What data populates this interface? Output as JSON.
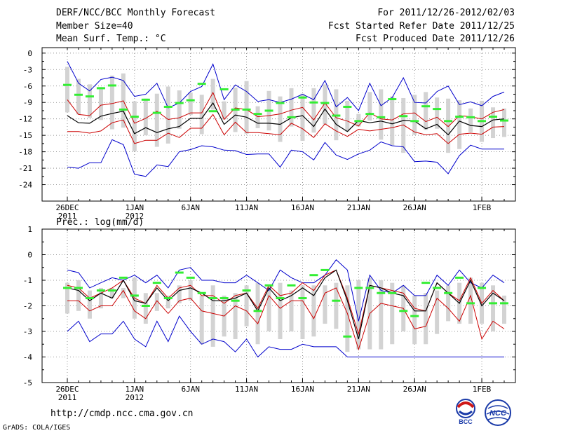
{
  "header": {
    "left": [
      "DERF/NCC/BCC Monthly Forecast",
      "Member Size=40",
      "Mean Surf. Temp.: °C"
    ],
    "right": [
      "For 2011/12/26-2012/02/03",
      "Fcst Started Refer Date 2011/12/25",
      "Fcst Produced Date 2011/12/26"
    ]
  },
  "footer": {
    "url": "http://cmdp.ncc.cma.gov.cn",
    "credit": "GrADS: COLA/IGES",
    "logo_left_text": "BCC",
    "logo_right_text": "NCC"
  },
  "colors": {
    "max_min": "#0000cc",
    "spread": "#cc0000",
    "mean": "#000000",
    "obs_bar": "#d3d3d3",
    "median": "#33ee33"
  },
  "chart_data": [
    {
      "type": "line",
      "title": "Mean Surf. Temp.: °C",
      "x_ticks": [
        {
          "index": 0,
          "label": "26DEC",
          "sub": "2011"
        },
        {
          "index": 6,
          "label": "1JAN",
          "sub": "2012"
        },
        {
          "index": 11,
          "label": "6JAN",
          "sub": ""
        },
        {
          "index": 16,
          "label": "11JAN",
          "sub": ""
        },
        {
          "index": 21,
          "label": "16JAN",
          "sub": ""
        },
        {
          "index": 26,
          "label": "21JAN",
          "sub": ""
        },
        {
          "index": 31,
          "label": "26JAN",
          "sub": ""
        },
        {
          "index": 37,
          "label": "1FEB",
          "sub": ""
        }
      ],
      "n_days": 40,
      "ylim": [
        -27,
        1
      ],
      "y_ticks": [
        0,
        -3,
        -6,
        -9,
        -12,
        -15,
        -18,
        -21,
        -24
      ],
      "series": [
        {
          "name": "max",
          "values": [
            -1.5,
            -5.5,
            -6.9,
            -4.8,
            -4.4,
            -5,
            -7.9,
            -7.5,
            -5.5,
            -10,
            -9.1,
            -7,
            -6.1,
            -2,
            -8.5,
            -5.8,
            -7,
            -8.8,
            -8.5,
            -9,
            -8.4,
            -7.5,
            -8.5,
            -5,
            -9.8,
            -8.1,
            -10.5,
            -5.5,
            -9.6,
            -8.1,
            -4.5,
            -9,
            -9.1,
            -7,
            -6,
            -9.4,
            -8.9,
            -9.6,
            -7.9,
            -7.1
          ]
        },
        {
          "name": "upper",
          "values": [
            -8.5,
            -11.2,
            -11.4,
            -9.5,
            -9.2,
            -8.7,
            -12.8,
            -11.9,
            -10.6,
            -12.1,
            -11.8,
            -10.9,
            -10.9,
            -7.2,
            -12.1,
            -10,
            -10.3,
            -11.6,
            -11.4,
            -11.1,
            -10.4,
            -9.9,
            -12.2,
            -9.1,
            -11.8,
            -12.4,
            -13.3,
            -10.9,
            -12,
            -12.2,
            -11.1,
            -10.9,
            -12.5,
            -11.7,
            -13.4,
            -11.4,
            -11.6,
            -12,
            -10.8,
            -10.3
          ]
        },
        {
          "name": "mean",
          "values": [
            -11.4,
            -12.7,
            -12.8,
            -11.5,
            -11,
            -10.6,
            -14.7,
            -13.6,
            -14.5,
            -13.8,
            -13.4,
            -11.9,
            -11.9,
            -9.1,
            -13,
            -11.3,
            -11.7,
            -12.8,
            -12.8,
            -13,
            -11.8,
            -11.4,
            -13.4,
            -10.2,
            -13,
            -14.3,
            -12.3,
            -12.7,
            -12.4,
            -12.9,
            -12.3,
            -12.4,
            -13.8,
            -13,
            -14.9,
            -12.4,
            -13.2,
            -13.4,
            -12.2,
            -12
          ]
        },
        {
          "name": "lower",
          "values": [
            -14.3,
            -14.3,
            -14.6,
            -14.2,
            -12.7,
            -12.2,
            -16.5,
            -15.9,
            -15.9,
            -14.6,
            -15.4,
            -13.7,
            -13.7,
            -11.2,
            -14.9,
            -12.6,
            -14.5,
            -14.5,
            -14.7,
            -14.9,
            -12.8,
            -13.8,
            -15.4,
            -12.9,
            -14.2,
            -15.2,
            -13.9,
            -14.2,
            -13.9,
            -13.6,
            -13.1,
            -14.4,
            -14.9,
            -14.7,
            -16.5,
            -14.8,
            -14.6,
            -14.8,
            -13.5,
            -13.4
          ]
        },
        {
          "name": "min",
          "values": [
            -20.8,
            -21,
            -20,
            -20,
            -15.8,
            -16.7,
            -22.1,
            -22.5,
            -20.4,
            -20.7,
            -18,
            -17.6,
            -16.9,
            -17.1,
            -17.7,
            -17.8,
            -18.5,
            -18.4,
            -18.4,
            -20.8,
            -17.7,
            -18,
            -19.5,
            -16.3,
            -18.6,
            -19.4,
            -18.4,
            -17.7,
            -16.2,
            -16.9,
            -17.1,
            -19.8,
            -19.7,
            -19.9,
            -22,
            -18.7,
            -16.8,
            -17.5,
            -17.5,
            -17.5
          ]
        },
        {
          "name": "median",
          "values": [
            -5.8,
            -7.6,
            -7.9,
            -6.4,
            -5.9,
            -10.3,
            -11.6,
            -8.5,
            -10.9,
            -9.8,
            -9.1,
            -8.6,
            -5.6,
            -10.6,
            -6.6,
            -10.3,
            -10.3,
            -11.1,
            -10.5,
            -9.1,
            -11.7,
            -8.1,
            -9,
            -9.1,
            -11.4,
            -9.8,
            -12.4,
            -11.1,
            -11.7,
            -8.4,
            -11.5,
            -12.4,
            -9.7,
            -10.2,
            -12.4,
            -11.6,
            -11.7,
            -12.4,
            -11.6,
            -12.3
          ]
        },
        {
          "name": "obs_top",
          "values": [
            -2.5,
            -4.7,
            -5.7,
            -6.2,
            -4.1,
            -3.7,
            -8.8,
            -8.3,
            -7.4,
            -6.1,
            -6.8,
            -7.2,
            -7.6,
            -4.7,
            -8.8,
            -6.3,
            -5.1,
            -9.7,
            -6.9,
            -7.9,
            -6.4,
            -7.4,
            -6.4,
            -5.7,
            -6.6,
            -8.7,
            -11.1,
            -7.1,
            -6.6,
            -7.9,
            -8.2,
            -7.6,
            -7.1,
            -8.1,
            -8.3,
            -8.6,
            -10.1,
            -8.7,
            -9.9,
            -10.1
          ]
        },
        {
          "name": "obs_bottom",
          "values": [
            -10.8,
            -11.2,
            -11.8,
            -12.2,
            -13.9,
            -13.6,
            -17.9,
            -15,
            -17.1,
            -16.5,
            -13.8,
            -11.3,
            -14.8,
            -10.3,
            -12.1,
            -14.4,
            -14.7,
            -13.7,
            -14.1,
            -16.2,
            -13.4,
            -16,
            -14.5,
            -13,
            -15.9,
            -14.3,
            -13.4,
            -12.3,
            -15.8,
            -16.8,
            -18.2,
            -14.9,
            -14,
            -13.8,
            -18.2,
            -17.5,
            -14.4,
            -16.2,
            -15.5,
            -15.3
          ]
        }
      ]
    },
    {
      "type": "line",
      "title": "Prec.: log(mm/d)",
      "x_ticks": [
        {
          "index": 0,
          "label": "26DEC",
          "sub": "2011"
        },
        {
          "index": 6,
          "label": "1JAN",
          "sub": "2012"
        },
        {
          "index": 11,
          "label": "6JAN",
          "sub": ""
        },
        {
          "index": 16,
          "label": "11JAN",
          "sub": ""
        },
        {
          "index": 21,
          "label": "16JAN",
          "sub": ""
        },
        {
          "index": 26,
          "label": "21JAN",
          "sub": ""
        },
        {
          "index": 31,
          "label": "26JAN",
          "sub": ""
        },
        {
          "index": 37,
          "label": "1FEB",
          "sub": ""
        }
      ],
      "n_days": 40,
      "ylim": [
        -5,
        1
      ],
      "y_ticks": [
        1,
        0,
        -1,
        -2,
        -3,
        -4,
        -5
      ],
      "series": [
        {
          "name": "max",
          "values": [
            -0.6,
            -0.7,
            -1.3,
            -1.1,
            -0.9,
            -1,
            -0.8,
            -1.1,
            -0.8,
            -1.3,
            -0.6,
            -0.5,
            -1,
            -1,
            -1.1,
            -1.1,
            -0.8,
            -1.1,
            -1.4,
            -0.6,
            -0.9,
            -1.1,
            -1.1,
            -0.8,
            -0.2,
            -0.6,
            -2.6,
            -0.8,
            -1.4,
            -1.5,
            -1.2,
            -1.6,
            -1.6,
            -0.8,
            -1.2,
            -0.6,
            -1.1,
            -1.3,
            -0.8,
            -1.1
          ]
        },
        {
          "name": "upper",
          "values": [
            -1.2,
            -1.3,
            -1.7,
            -1.5,
            -1.3,
            -1,
            -1.7,
            -1.9,
            -1.2,
            -1.7,
            -1.3,
            -1.2,
            -1.6,
            -1.6,
            -1.9,
            -1.6,
            -1.5,
            -2.1,
            -1.2,
            -1.6,
            -1.5,
            -1.1,
            -1.4,
            -0.8,
            -0.6,
            -1.7,
            -3.1,
            -1.2,
            -1.3,
            -1.4,
            -1.5,
            -2.1,
            -2.2,
            -1.1,
            -1.5,
            -1.8,
            -0.9,
            -1.9,
            -1.4,
            -1.8
          ]
        },
        {
          "name": "mean",
          "values": [
            -1.3,
            -1.4,
            -1.8,
            -1.5,
            -1.7,
            -1,
            -1.8,
            -1.9,
            -1.3,
            -1.8,
            -1.4,
            -1.3,
            -1.5,
            -1.8,
            -1.8,
            -1.7,
            -1.5,
            -2.2,
            -1.3,
            -1.8,
            -1.6,
            -1.3,
            -1.6,
            -0.9,
            -0.6,
            -1.8,
            -3.3,
            -1.2,
            -1.3,
            -1.5,
            -1.6,
            -2.2,
            -2.2,
            -1.1,
            -1.5,
            -1.9,
            -1,
            -2,
            -1.5,
            -1.8
          ]
        },
        {
          "name": "lower",
          "values": [
            -1.8,
            -1.8,
            -2.2,
            -2,
            -2,
            -1.4,
            -2.2,
            -2.5,
            -1.8,
            -2.3,
            -1.8,
            -1.7,
            -2.2,
            -2.3,
            -2.4,
            -2,
            -2.2,
            -2.7,
            -1.6,
            -2.1,
            -1.8,
            -1.8,
            -2.5,
            -1.5,
            -1.3,
            -2.3,
            -3.7,
            -2.3,
            -1.9,
            -2,
            -2.1,
            -2.9,
            -2.8,
            -1.7,
            -2.1,
            -2.6,
            -1.6,
            -3.3,
            -2.6,
            -2.9
          ]
        },
        {
          "name": "min",
          "values": [
            -3,
            -2.6,
            -3.4,
            -3.1,
            -3.1,
            -2.6,
            -3.3,
            -3.6,
            -2.6,
            -3.4,
            -2.4,
            -3,
            -3.5,
            -3.3,
            -3.4,
            -3.8,
            -3.3,
            -4,
            -3.6,
            -3.7,
            -3.7,
            -3.5,
            -3.6,
            -3.6,
            -3.6,
            -4,
            -4,
            -4,
            -4,
            -4,
            -4,
            -4,
            -4,
            -4,
            -4,
            -4,
            -4,
            -4,
            -4,
            -4
          ]
        },
        {
          "name": "median",
          "values": [
            -1.3,
            -1.3,
            -1.7,
            -1.4,
            -1.4,
            -0.9,
            -1.6,
            -2,
            -1.1,
            -1.7,
            -0.7,
            -0.9,
            -1.5,
            -1.7,
            -1.7,
            -1.8,
            -1.4,
            -2.2,
            -1.2,
            -1.7,
            -1.2,
            -1.7,
            -0.8,
            -0.6,
            -1.8,
            -3.2,
            -1.3,
            -1.3,
            -1.5,
            -1.5,
            -2.2,
            -2.4,
            -1.1,
            -1.3,
            -1.5,
            -0.9,
            -1.9,
            -1.3,
            -1.9,
            -1.9
          ]
        },
        {
          "name": "obs_top",
          "values": [
            -1.1,
            -1,
            -1.4,
            -1.3,
            -1.3,
            -1.3,
            -0.9,
            -1.5,
            -1.5,
            -1.6,
            -1.2,
            -1,
            -1.6,
            -1.2,
            -1.6,
            -1.5,
            -1.2,
            -1.1,
            -1.2,
            -1.1,
            -1.4,
            -1.2,
            -1.2,
            -1.2,
            -1.1,
            -1.2,
            -1,
            -0.9,
            -1,
            -1.1,
            -1.2,
            -1.6,
            -1.5,
            -1.4,
            -1.2,
            -1.1,
            -0.9,
            -1.1,
            -1.2,
            -1.6
          ]
        },
        {
          "name": "obs_bottom",
          "values": [
            -2.3,
            -2.2,
            -2.5,
            -2.1,
            -1.7,
            -1.7,
            -2.5,
            -2.7,
            -2.2,
            -2.1,
            -1.9,
            -1.8,
            -3.5,
            -3.6,
            -3.2,
            -3.3,
            -2.8,
            -3.5,
            -3,
            -3.3,
            -3,
            -3.3,
            -3.2,
            -2.7,
            -2.9,
            -3.8,
            -3.7,
            -3.7,
            -3.7,
            -3.5,
            -3,
            -3.5,
            -3.5,
            -3.1,
            -2.6,
            -2.7,
            -2.7,
            -2.7,
            -3,
            -2.7
          ]
        }
      ]
    }
  ]
}
